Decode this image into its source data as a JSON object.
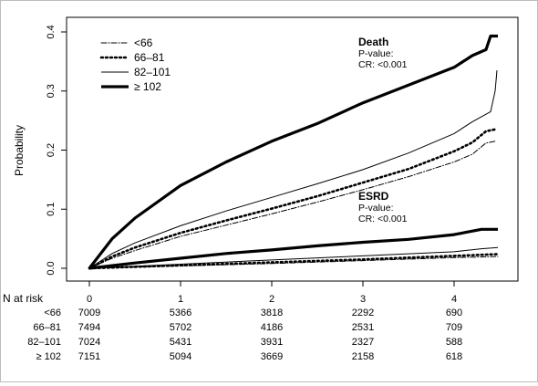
{
  "chart_data": {
    "type": "line",
    "xlabel": "",
    "ylabel": "Probability",
    "xlim": [
      0,
      4.5
    ],
    "ylim": [
      0,
      0.4
    ],
    "x_ticks": [
      "0",
      "1",
      "2",
      "3",
      "4"
    ],
    "y_ticks": [
      "0.0",
      "0.1",
      "0.2",
      "0.3",
      "0.4"
    ],
    "grid": false,
    "legend_position": "top-left",
    "legend": [
      {
        "label": "<66",
        "style": "dash-dot"
      },
      {
        "label": "66–81",
        "style": "dotted"
      },
      {
        "label": "82–101",
        "style": "thin"
      },
      {
        "label": "≥ 102",
        "style": "thick"
      }
    ],
    "annotations": [
      {
        "title": "Death",
        "line1": "P-value:",
        "line2": "CR: <0.001"
      },
      {
        "title": "ESRD",
        "line1": "P-value:",
        "line2": "CR: <0.001"
      }
    ],
    "series": [
      {
        "outcome": "Death",
        "group": "<66",
        "style": "dash-dot",
        "x": [
          0,
          0.25,
          0.5,
          1,
          1.5,
          2,
          2.5,
          3,
          3.5,
          4,
          4.2,
          4.35,
          4.45
        ],
        "y": [
          0,
          0.017,
          0.03,
          0.054,
          0.073,
          0.092,
          0.112,
          0.133,
          0.155,
          0.18,
          0.193,
          0.212,
          0.215
        ]
      },
      {
        "outcome": "Death",
        "group": "66–81",
        "style": "dotted",
        "x": [
          0,
          0.25,
          0.5,
          1,
          1.5,
          2,
          2.5,
          3,
          3.5,
          4,
          4.2,
          4.35,
          4.45
        ],
        "y": [
          0,
          0.02,
          0.035,
          0.06,
          0.081,
          0.101,
          0.122,
          0.145,
          0.168,
          0.198,
          0.213,
          0.232,
          0.235
        ]
      },
      {
        "outcome": "Death",
        "group": "82–101",
        "style": "thin",
        "x": [
          0,
          0.25,
          0.5,
          1,
          1.5,
          2,
          2.5,
          3,
          3.5,
          4,
          4.2,
          4.4,
          4.45,
          4.47
        ],
        "y": [
          0,
          0.025,
          0.043,
          0.072,
          0.097,
          0.12,
          0.143,
          0.167,
          0.195,
          0.228,
          0.248,
          0.265,
          0.3,
          0.335
        ]
      },
      {
        "outcome": "Death",
        "group": "≥ 102",
        "style": "thick",
        "x": [
          0,
          0.25,
          0.5,
          1,
          1.5,
          2,
          2.5,
          3,
          3.5,
          4,
          4.2,
          4.35,
          4.4,
          4.48
        ],
        "y": [
          0,
          0.05,
          0.085,
          0.14,
          0.18,
          0.215,
          0.245,
          0.28,
          0.31,
          0.34,
          0.36,
          0.37,
          0.393,
          0.393
        ]
      },
      {
        "outcome": "ESRD",
        "group": "<66",
        "style": "dash-dot",
        "x": [
          0,
          1,
          2,
          3,
          4,
          4.48
        ],
        "y": [
          0,
          0.004,
          0.008,
          0.013,
          0.018,
          0.02
        ]
      },
      {
        "outcome": "ESRD",
        "group": "66–81",
        "style": "dotted",
        "x": [
          0,
          1,
          2,
          3,
          4,
          4.48
        ],
        "y": [
          0,
          0.005,
          0.01,
          0.015,
          0.021,
          0.024
        ]
      },
      {
        "outcome": "ESRD",
        "group": "82–101",
        "style": "thin",
        "x": [
          0,
          1,
          2,
          3,
          4,
          4.3,
          4.48
        ],
        "y": [
          0,
          0.007,
          0.014,
          0.021,
          0.028,
          0.033,
          0.035
        ]
      },
      {
        "outcome": "ESRD",
        "group": "≥ 102",
        "style": "thick",
        "x": [
          0,
          0.5,
          1,
          1.5,
          2,
          2.5,
          3,
          3.5,
          4,
          4.3,
          4.48
        ],
        "y": [
          0,
          0.009,
          0.017,
          0.025,
          0.031,
          0.038,
          0.044,
          0.049,
          0.057,
          0.066,
          0.066
        ]
      }
    ],
    "risk_table": {
      "header": "N at risk",
      "columns": [
        "0",
        "1",
        "2",
        "3",
        "4"
      ],
      "rows": [
        {
          "label": "<66",
          "values": [
            "7009",
            "5366",
            "3818",
            "2292",
            "690"
          ]
        },
        {
          "label": "66–81",
          "values": [
            "7494",
            "5702",
            "4186",
            "2531",
            "709"
          ]
        },
        {
          "label": "82–101",
          "values": [
            "7024",
            "5431",
            "3931",
            "2327",
            "588"
          ]
        },
        {
          "label": "≥ 102",
          "values": [
            "7151",
            "5094",
            "3669",
            "2158",
            "618"
          ]
        }
      ]
    }
  }
}
